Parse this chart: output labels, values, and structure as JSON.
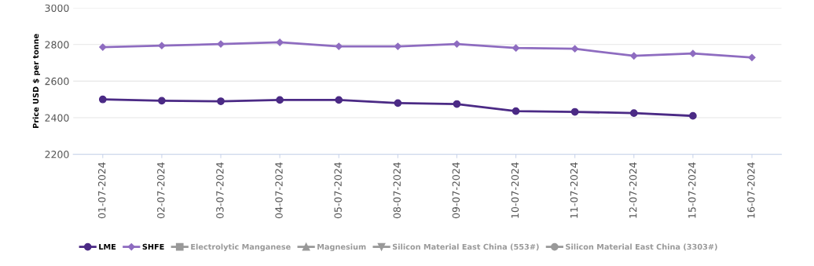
{
  "chart_data": {
    "type": "line",
    "ylabel": "Price USD $ per tonne",
    "categories": [
      "01-07-2024",
      "02-07-2024",
      "03-07-2024",
      "04-07-2024",
      "05-07-2024",
      "08-07-2024",
      "09-07-2024",
      "10-07-2024",
      "11-07-2024",
      "12-07-2024",
      "15-07-2024",
      "16-07-2024"
    ],
    "series": [
      {
        "name": "LME",
        "color": "#4b2a85",
        "marker": "circle",
        "values": [
          2500,
          2493,
          2490,
          2497,
          2497,
          2480,
          2475,
          2436,
          2432,
          2425,
          2410,
          null
        ]
      },
      {
        "name": "SHFE",
        "color": "#8e6cc0",
        "marker": "diamond",
        "values": [
          2786,
          2794,
          2803,
          2812,
          2790,
          2790,
          2803,
          2781,
          2777,
          2738,
          2751,
          2729
        ]
      },
      {
        "name": "Electrolytic Manganese",
        "color": "#999999",
        "marker": "square",
        "values": [
          null,
          null,
          null,
          null,
          null,
          null,
          null,
          null,
          null,
          null,
          null,
          null
        ]
      },
      {
        "name": "Magnesium",
        "color": "#999999",
        "marker": "triangle",
        "values": [
          null,
          null,
          null,
          null,
          null,
          null,
          null,
          null,
          null,
          null,
          null,
          null
        ]
      },
      {
        "name": "Silicon Material East China (553#)",
        "color": "#999999",
        "marker": "triangle_down",
        "values": [
          null,
          null,
          null,
          null,
          null,
          null,
          null,
          null,
          null,
          null,
          null,
          null
        ]
      },
      {
        "name": "Silicon Material East China (3303#)",
        "color": "#999999",
        "marker": "circle",
        "values": [
          null,
          null,
          null,
          null,
          null,
          null,
          null,
          null,
          null,
          null,
          null,
          null
        ]
      }
    ],
    "ylim": [
      2200,
      3000
    ],
    "yticks": [
      2200,
      2400,
      2600,
      2800,
      3000
    ],
    "grid": "y",
    "legend": "bottom left"
  }
}
